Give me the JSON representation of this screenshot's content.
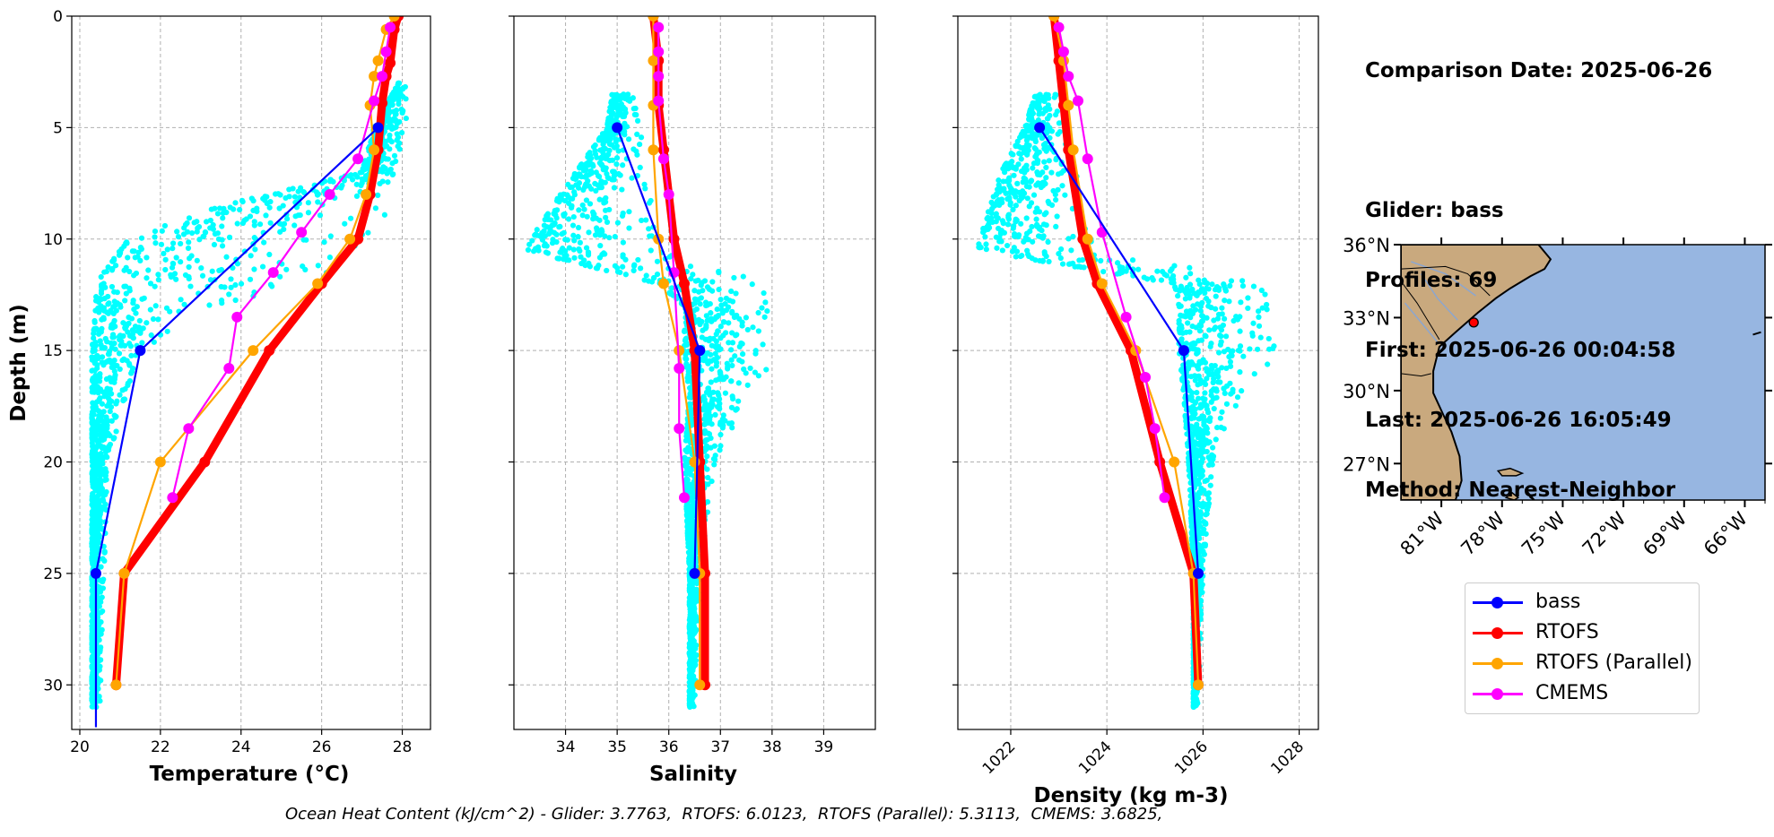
{
  "info": {
    "comparison": "Comparison Date: 2025-06-26",
    "glider": "Glider: bass",
    "profiles": "Profiles: 69",
    "first": "First: 2025-06-26 00:04:58",
    "last": "Last: 2025-06-26 16:05:49",
    "method": "Method: Nearest-Neighbor"
  },
  "footer": "Ocean Heat Content (kJ/cm^2) - Glider: 3.7763,  RTOFS: 6.0123,  RTOFS (Parallel): 5.3113,  CMEMS: 3.6825,",
  "colors": {
    "glider": "#0000ff",
    "rtofs": "#ff0000",
    "parallel": "#ffa500",
    "cmems": "#ff00ff",
    "scatter": "#00ffff",
    "ocean": "#97b6e1",
    "land": "#c9a97e"
  },
  "legend": [
    {
      "name": "bass",
      "color": "#0000ff"
    },
    {
      "name": "RTOFS",
      "color": "#ff0000"
    },
    {
      "name": "RTOFS (Parallel)",
      "color": "#ffa500"
    },
    {
      "name": "CMEMS",
      "color": "#ff00ff"
    }
  ],
  "chart_data": [
    {
      "type": "line",
      "xlabel": "Temperature (°C)",
      "ylabel": "Depth (m)",
      "xlim": [
        19.8,
        28.7
      ],
      "ylim": [
        32,
        0
      ],
      "xticks": [
        20,
        22,
        24,
        26,
        28
      ],
      "yticks": [
        0,
        5,
        10,
        15,
        20,
        25,
        30
      ],
      "grid": true,
      "glider_scatter": {
        "name": "bass (raw)",
        "depth_bins": [
          [
            3,
            27.9,
            28.1
          ],
          [
            5,
            27.3,
            28.1
          ],
          [
            7,
            27.0,
            28.0
          ],
          [
            8.5,
            23.5,
            27.9
          ],
          [
            10,
            21.2,
            27.7
          ],
          [
            11,
            20.8,
            26.5
          ],
          [
            12,
            20.4,
            26.0
          ],
          [
            13,
            20.4,
            23.5
          ],
          [
            15,
            20.3,
            21.5
          ],
          [
            20,
            20.3,
            20.7
          ],
          [
            25,
            20.3,
            20.6
          ],
          [
            31,
            20.3,
            20.5
          ]
        ]
      },
      "series": [
        {
          "name": "bass",
          "x": [
            27.4,
            21.5,
            20.4,
            20.4
          ],
          "y": [
            5,
            15,
            25,
            31.9
          ]
        },
        {
          "name": "RTOFS",
          "x": [
            27.9,
            27.8,
            27.7,
            27.6,
            27.5,
            27.4,
            27.2,
            26.9,
            26.0,
            24.7,
            23.1,
            21.1,
            20.9
          ],
          "y": [
            0,
            0.6,
            2.1,
            2.7,
            3.9,
            6.0,
            8.0,
            10.0,
            12.0,
            15.0,
            20.0,
            25.0,
            30.0
          ]
        },
        {
          "name": "RTOFS (Parallel)",
          "x": [
            27.8,
            27.6,
            27.4,
            27.3,
            27.2,
            27.3,
            27.1,
            26.7,
            25.9,
            24.3,
            22.0,
            21.1,
            20.9
          ],
          "y": [
            0,
            0.6,
            2.0,
            2.7,
            4.0,
            6.0,
            8.0,
            10.0,
            12.0,
            15.0,
            20.0,
            25.0,
            30.0
          ]
        },
        {
          "name": "CMEMS",
          "x": [
            27.7,
            27.6,
            27.5,
            27.3,
            26.9,
            26.2,
            25.5,
            24.8,
            23.9,
            23.7,
            22.7,
            22.3
          ],
          "y": [
            0.5,
            1.6,
            2.7,
            3.8,
            6.4,
            8.0,
            9.7,
            11.5,
            13.5,
            15.8,
            18.5,
            21.6
          ]
        }
      ]
    },
    {
      "type": "line",
      "xlabel": "Salinity",
      "xlim": [
        33.0,
        40.0
      ],
      "ylim": [
        32,
        0
      ],
      "xticks": [
        34,
        35,
        36,
        37,
        38,
        39
      ],
      "yticks": [
        0,
        5,
        10,
        15,
        20,
        25,
        30
      ],
      "grid": true,
      "glider_scatter": {
        "name": "bass (raw)",
        "depth_bins": [
          [
            3.5,
            34.9,
            35.3
          ],
          [
            5,
            34.8,
            35.5
          ],
          [
            7,
            34.2,
            35.6
          ],
          [
            9,
            33.6,
            35.7
          ],
          [
            10.5,
            33.2,
            35.9
          ],
          [
            12,
            35.8,
            37.9
          ],
          [
            13,
            36.3,
            38.0
          ],
          [
            15,
            36.3,
            38.2
          ],
          [
            17,
            36.4,
            37.6
          ],
          [
            20,
            36.3,
            36.9
          ],
          [
            25,
            36.4,
            36.6
          ],
          [
            31,
            36.4,
            36.5
          ]
        ]
      },
      "series": [
        {
          "name": "bass",
          "x": [
            35.0,
            36.6,
            36.5
          ],
          "y": [
            5,
            15,
            25
          ]
        },
        {
          "name": "RTOFS",
          "x": [
            35.7,
            35.8,
            35.8,
            35.9,
            36.1,
            36.3,
            36.5,
            36.6,
            36.7,
            36.7
          ],
          "y": [
            0,
            2.0,
            4.0,
            6.0,
            10.0,
            12.0,
            15.0,
            20.0,
            25.0,
            30.0
          ]
        },
        {
          "name": "RTOFS (Parallel)",
          "x": [
            35.7,
            35.7,
            35.7,
            35.7,
            35.8,
            35.9,
            36.2,
            36.5,
            36.6,
            36.6
          ],
          "y": [
            0,
            2.0,
            4.0,
            6.0,
            10.0,
            12.0,
            15.0,
            20.0,
            25.0,
            30.0
          ]
        },
        {
          "name": "CMEMS",
          "x": [
            35.8,
            35.8,
            35.8,
            35.8,
            35.9,
            36.0,
            36.1,
            36.2,
            36.2,
            36.3
          ],
          "y": [
            0.5,
            1.6,
            2.7,
            3.8,
            6.4,
            8.0,
            11.5,
            15.8,
            18.5,
            21.6
          ]
        }
      ]
    },
    {
      "type": "line",
      "xlabel": "Density (kg m-3)",
      "xlim": [
        1020.9,
        1028.4
      ],
      "ylim": [
        32,
        0
      ],
      "xticks": [
        1022,
        1024,
        1026,
        1028
      ],
      "yticks": [
        0,
        5,
        10,
        15,
        20,
        25,
        30
      ],
      "grid": true,
      "glider_scatter": {
        "name": "bass (raw)",
        "depth_bins": [
          [
            3.5,
            1022.5,
            1023.0
          ],
          [
            5,
            1022.3,
            1023.2
          ],
          [
            7,
            1021.8,
            1023.4
          ],
          [
            9,
            1021.5,
            1023.5
          ],
          [
            10.5,
            1021.3,
            1024.0
          ],
          [
            12,
            1025.4,
            1027.3
          ],
          [
            13,
            1025.5,
            1027.4
          ],
          [
            15,
            1025.5,
            1027.6
          ],
          [
            17,
            1025.6,
            1026.8
          ],
          [
            20,
            1025.7,
            1026.2
          ],
          [
            25,
            1025.8,
            1026.0
          ],
          [
            31,
            1025.8,
            1025.9
          ]
        ]
      },
      "series": [
        {
          "name": "bass",
          "x": [
            1022.6,
            1025.6,
            1025.9
          ],
          "y": [
            5,
            15,
            25
          ]
        },
        {
          "name": "RTOFS",
          "x": [
            1022.9,
            1023.0,
            1023.1,
            1023.2,
            1023.5,
            1023.8,
            1024.5,
            1025.1,
            1025.8,
            1025.9
          ],
          "y": [
            0,
            2.0,
            4.0,
            6.0,
            10.0,
            12.0,
            15.0,
            20.0,
            25.0,
            30.0
          ]
        },
        {
          "name": "RTOFS (Parallel)",
          "x": [
            1022.9,
            1023.1,
            1023.2,
            1023.3,
            1023.6,
            1023.9,
            1024.6,
            1025.4,
            1025.8,
            1025.9
          ],
          "y": [
            0,
            2.0,
            4.0,
            6.0,
            10.0,
            12.0,
            15.0,
            20.0,
            25.0,
            30.0
          ]
        },
        {
          "name": "CMEMS",
          "x": [
            1023.0,
            1023.1,
            1023.2,
            1023.4,
            1023.6,
            1023.9,
            1024.4,
            1024.8,
            1025.0,
            1025.2
          ],
          "y": [
            0.5,
            1.6,
            2.7,
            3.8,
            6.4,
            9.7,
            13.5,
            16.2,
            18.5,
            21.6
          ]
        }
      ]
    },
    {
      "type": "map",
      "xlim": [
        -83,
        -65
      ],
      "ylim": [
        25.5,
        36
      ],
      "xticks": [
        -81,
        -78,
        -75,
        -72,
        -69,
        -66
      ],
      "yticks": [
        27,
        30,
        33,
        36
      ],
      "xticklabels": [
        "81°W",
        "78°W",
        "75°W",
        "72°W",
        "69°W",
        "66°W"
      ],
      "yticklabels": [
        "27°N",
        "30°N",
        "33°N",
        "36°N"
      ],
      "glider_location": {
        "lon": -79.4,
        "lat": 32.8
      }
    }
  ]
}
